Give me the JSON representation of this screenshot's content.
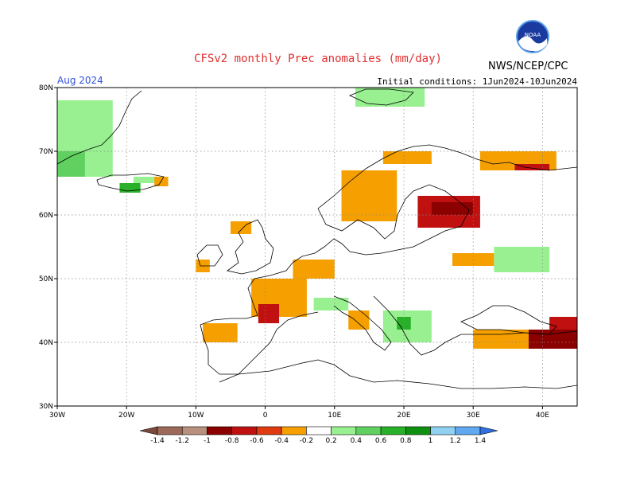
{
  "title": "CFSv2 monthly Prec anomalies (mm/day)",
  "credit": "NWS/NCEP/CPC",
  "logo_text": "NOAA",
  "month": "Aug 2024",
  "initial_conditions": "Initial conditions: 1Jun2024-10Jun2024",
  "map": {
    "lon_range": [
      -30,
      45
    ],
    "lat_range": [
      30,
      80
    ],
    "lon_ticks": [
      {
        "value": -30,
        "label": "30W"
      },
      {
        "value": -20,
        "label": "20W"
      },
      {
        "value": -10,
        "label": "10W"
      },
      {
        "value": 0,
        "label": "0"
      },
      {
        "value": 10,
        "label": "10E"
      },
      {
        "value": 20,
        "label": "20E"
      },
      {
        "value": 30,
        "label": "30E"
      },
      {
        "value": 40,
        "label": "40E"
      }
    ],
    "lat_ticks": [
      {
        "value": 30,
        "label": "30N"
      },
      {
        "value": 40,
        "label": "40N"
      },
      {
        "value": 50,
        "label": "50N"
      },
      {
        "value": 60,
        "label": "60N"
      },
      {
        "value": 70,
        "label": "70N"
      },
      {
        "value": 80,
        "label": "80N"
      }
    ],
    "grid": true,
    "anomaly_regions": [
      {
        "region": "Greenland coast",
        "lon": [
          -30,
          -22
        ],
        "lat": [
          66,
          78
        ],
        "value": 0.3
      },
      {
        "region": "Greenland coast south",
        "lon": [
          -30,
          -26
        ],
        "lat": [
          66,
          70
        ],
        "value": 0.6
      },
      {
        "region": "Iceland west",
        "lon": [
          -21,
          -18
        ],
        "lat": [
          63.5,
          65
        ],
        "value": 0.7
      },
      {
        "region": "Iceland north",
        "lon": [
          -19,
          -16
        ],
        "lat": [
          65,
          66
        ],
        "value": 0.3
      },
      {
        "region": "Iceland east",
        "lon": [
          -16,
          -14
        ],
        "lat": [
          64.5,
          66
        ],
        "value": -0.3
      },
      {
        "region": "Svalbard",
        "lon": [
          13,
          23
        ],
        "lat": [
          77,
          80
        ],
        "value": 0.3
      },
      {
        "region": "Scotland west",
        "lon": [
          -5,
          -2
        ],
        "lat": [
          57,
          59
        ],
        "value": -0.3
      },
      {
        "region": "Ireland south",
        "lon": [
          -10,
          -8
        ],
        "lat": [
          51,
          53
        ],
        "value": -0.3
      },
      {
        "region": "France",
        "lon": [
          -2,
          6
        ],
        "lat": [
          44,
          50
        ],
        "value": -0.3
      },
      {
        "region": "France southwest",
        "lon": [
          -1,
          2
        ],
        "lat": [
          43,
          46
        ],
        "value": -0.6
      },
      {
        "region": "Iberia north",
        "lon": [
          -9,
          -4
        ],
        "lat": [
          40,
          43
        ],
        "value": -0.3
      },
      {
        "region": "Benelux Germany",
        "lon": [
          4,
          10
        ],
        "lat": [
          50,
          53
        ],
        "value": -0.3
      },
      {
        "region": "Alps",
        "lon": [
          7,
          12
        ],
        "lat": [
          45,
          47
        ],
        "value": 0.3
      },
      {
        "region": "Italy north",
        "lon": [
          12,
          15
        ],
        "lat": [
          42,
          45
        ],
        "value": -0.3
      },
      {
        "region": "Balkans",
        "lon": [
          17,
          24
        ],
        "lat": [
          40,
          45
        ],
        "value": 0.4
      },
      {
        "region": "Balkans core",
        "lon": [
          19,
          21
        ],
        "lat": [
          42,
          44
        ],
        "value": 0.7
      },
      {
        "region": "Scandinavia",
        "lon": [
          11,
          19
        ],
        "lat": [
          59,
          67
        ],
        "value": -0.3
      },
      {
        "region": "Norway north",
        "lon": [
          17,
          24
        ],
        "lat": [
          68,
          70
        ],
        "value": -0.3
      },
      {
        "region": "Baltic Finland",
        "lon": [
          22,
          31
        ],
        "lat": [
          58,
          63
        ],
        "value": -0.6
      },
      {
        "region": "Karelia",
        "lon": [
          24,
          30
        ],
        "lat": [
          60,
          62
        ],
        "value": -0.8
      },
      {
        "region": "Kola White Sea",
        "lon": [
          31,
          42
        ],
        "lat": [
          67,
          70
        ],
        "value": -0.3
      },
      {
        "region": "Kola core",
        "lon": [
          36,
          41
        ],
        "lat": [
          67,
          68
        ],
        "value": -0.6
      },
      {
        "region": "Belarus Ukraine",
        "lon": [
          27,
          33
        ],
        "lat": [
          52,
          54
        ],
        "value": -0.3
      },
      {
        "region": "Russia central",
        "lon": [
          33,
          41
        ],
        "lat": [
          51,
          55
        ],
        "value": 0.3
      },
      {
        "region": "Turkey",
        "lon": [
          30,
          45
        ],
        "lat": [
          39,
          42
        ],
        "value": -0.3
      },
      {
        "region": "Turkey east",
        "lon": [
          38,
          45
        ],
        "lat": [
          39,
          42
        ],
        "value": -0.8
      },
      {
        "region": "Caucasus",
        "lon": [
          41,
          45
        ],
        "lat": [
          42,
          44
        ],
        "value": -0.6
      }
    ]
  },
  "legend": {
    "bins": [
      -1.4,
      -1.2,
      -1,
      -0.8,
      -0.6,
      -0.4,
      -0.2,
      0.2,
      0.4,
      0.6,
      0.8,
      1,
      1.2,
      1.4
    ],
    "labels": [
      "-1.4",
      "-1.2",
      "-1",
      "-0.8",
      "-0.6",
      "-0.4",
      "-0.2",
      "0.2",
      "0.4",
      "0.6",
      "0.8",
      "1",
      "1.2",
      "1.4"
    ],
    "colors": [
      "#7a4a3a",
      "#9c6a58",
      "#b8907e",
      "#8b0000",
      "#c01010",
      "#e03a10",
      "#f5a000",
      "#ffffff",
      "#98f090",
      "#60d060",
      "#28b028",
      "#109010",
      "#90d0f0",
      "#60a8f0",
      "#3070e0"
    ]
  }
}
